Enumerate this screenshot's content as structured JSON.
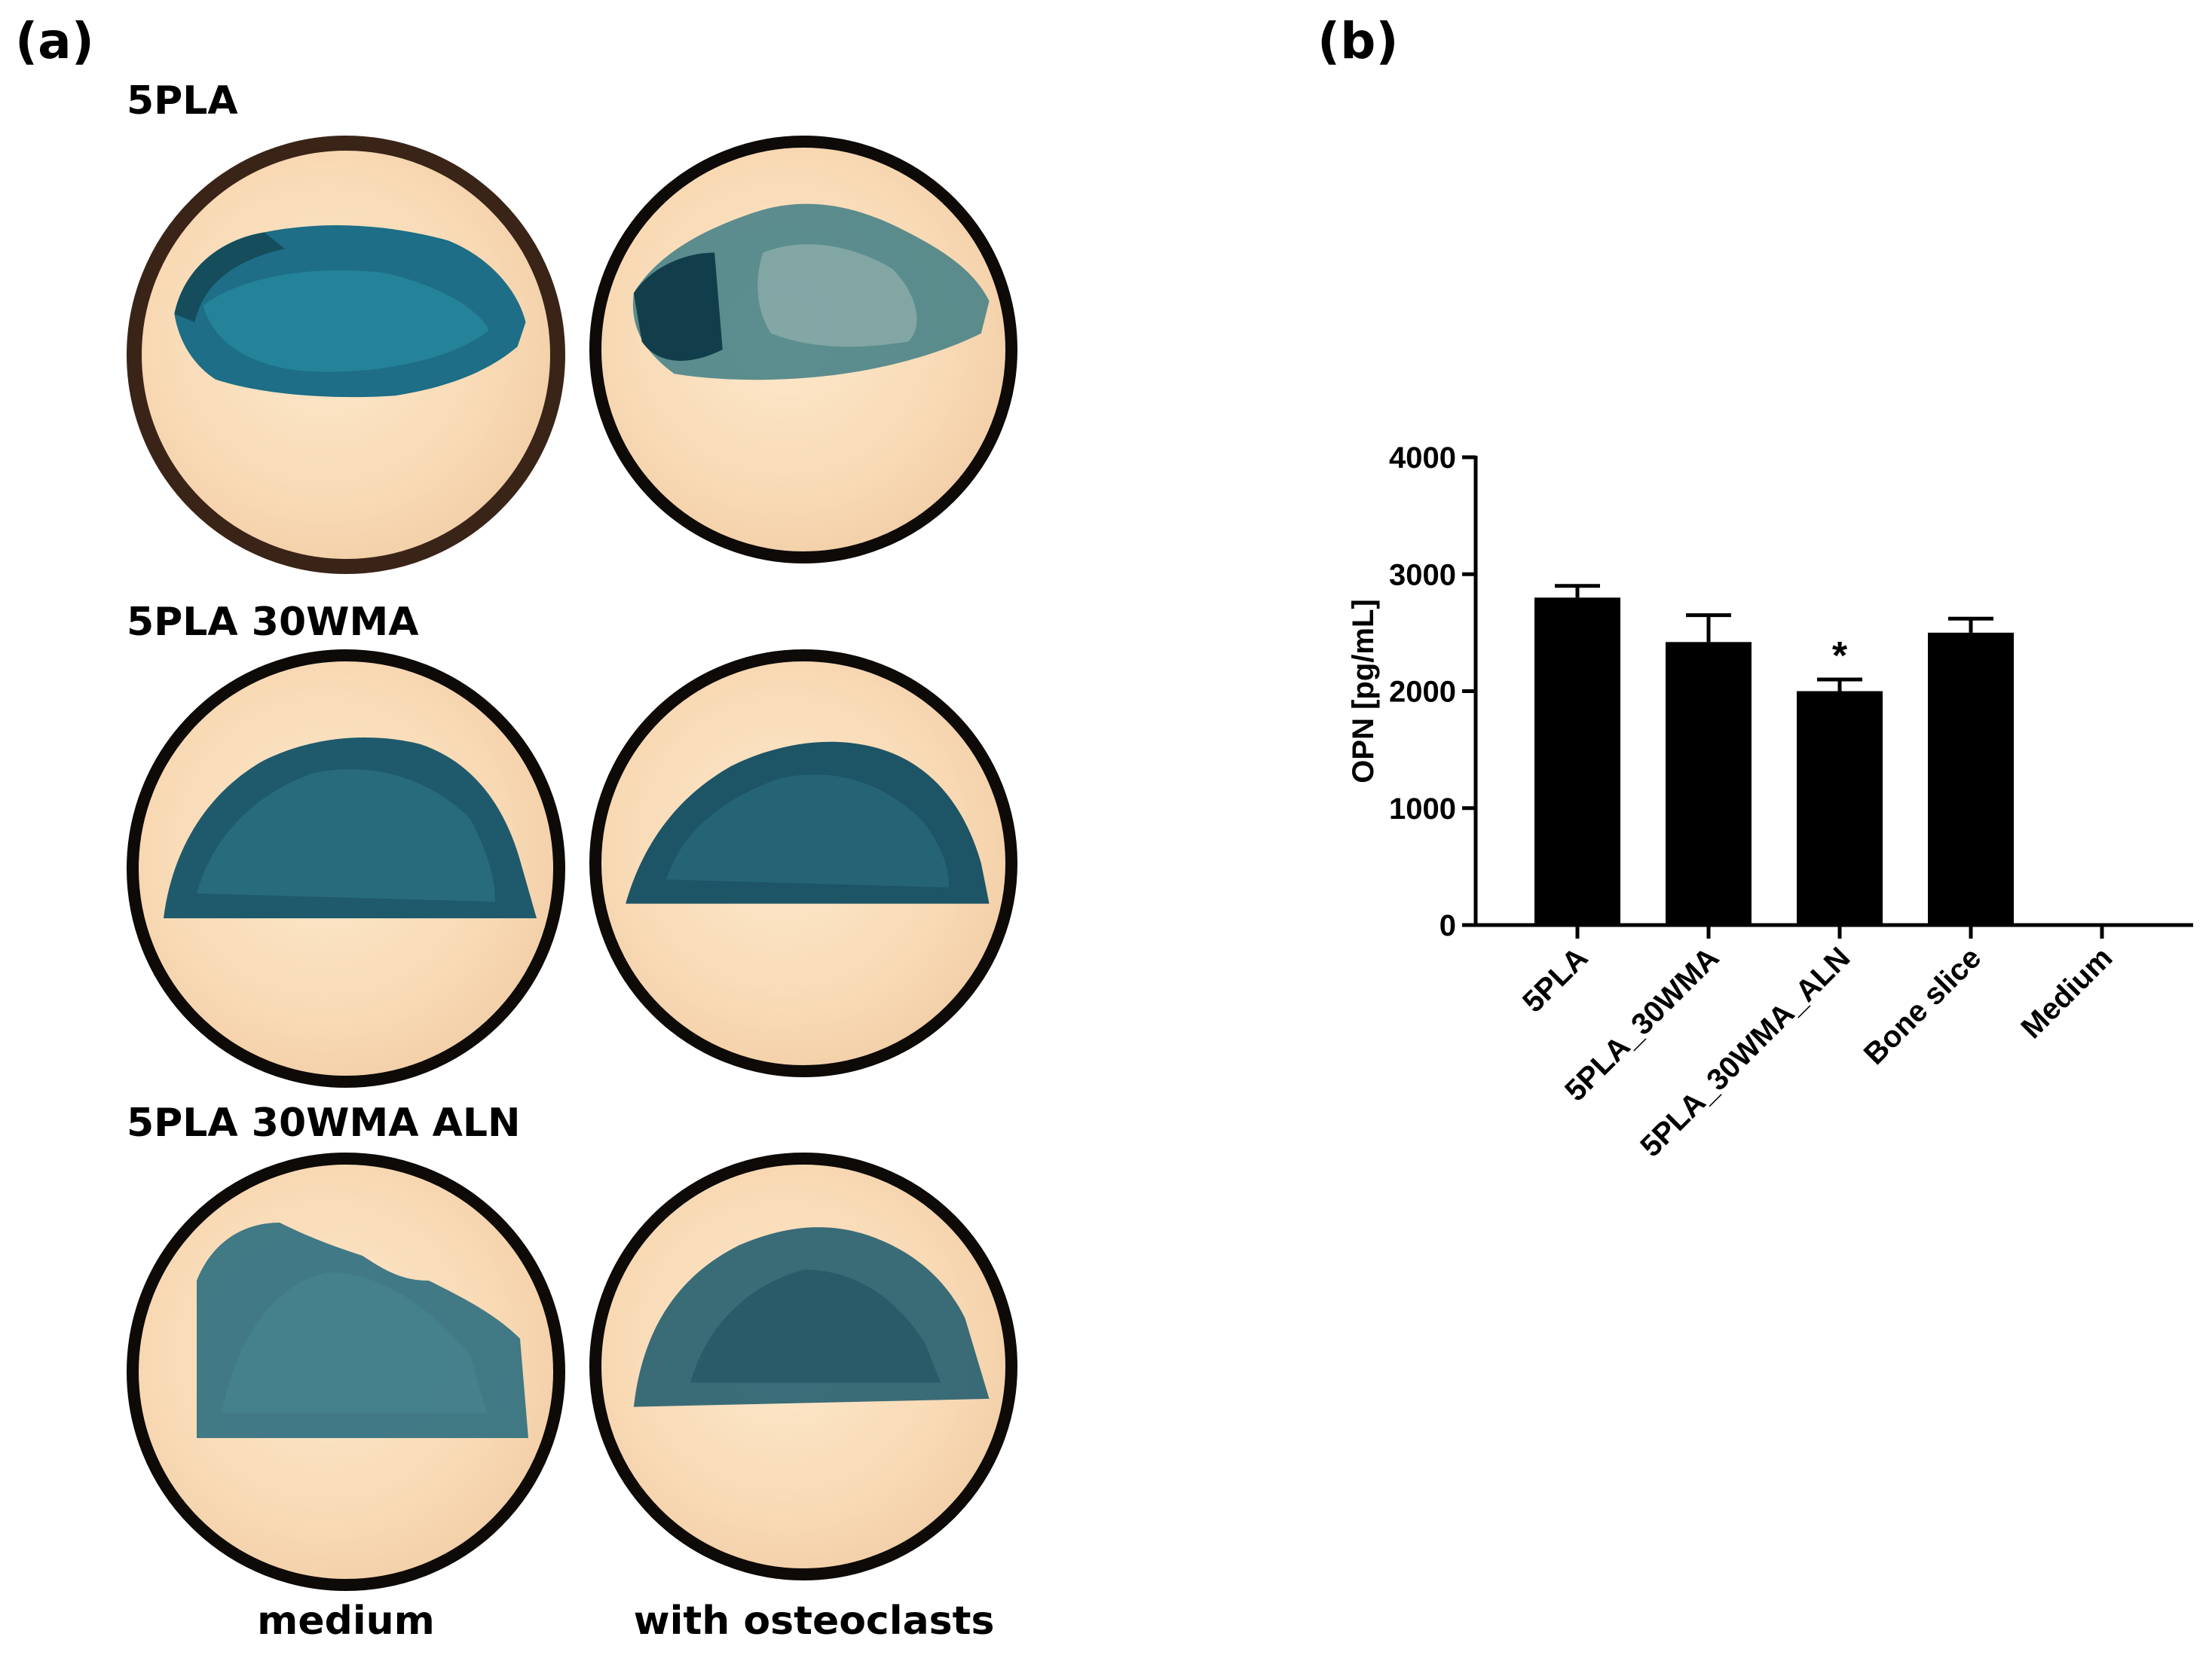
{
  "panel_a": {
    "label": "(a)",
    "rows": [
      {
        "label": "5PLA"
      },
      {
        "label": "5PLA 30WMA"
      },
      {
        "label": "5PLA 30WMA ALN"
      }
    ],
    "columns": [
      {
        "label": "medium"
      },
      {
        "label": "with osteoclasts"
      }
    ],
    "colors": {
      "stain": "#1d5f73",
      "stain_dark": "#123e4c",
      "background": "#f8d9b4",
      "ring": "#0d0a08"
    }
  },
  "panel_b": {
    "label": "(b)"
  },
  "chart_data": {
    "type": "bar",
    "categories": [
      "5PLA",
      "5PLA_30WMA",
      "5PLA_30WMA_ALN",
      "Bone slice",
      "Medium"
    ],
    "values": [
      2800,
      2420,
      2000,
      2500,
      0
    ],
    "errors": [
      100,
      230,
      100,
      120,
      0
    ],
    "annotations": [
      "",
      "",
      "*",
      "",
      ""
    ],
    "ylabel": "OPN [pg/mL]",
    "xlabel": "",
    "ylim": [
      0,
      4000
    ],
    "yticks": [
      0,
      1000,
      2000,
      3000,
      4000
    ],
    "bar_color": "#000000",
    "grid": false
  }
}
